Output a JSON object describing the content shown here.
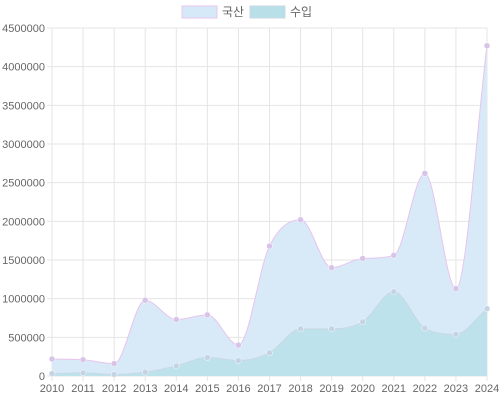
{
  "chart_data": {
    "type": "area",
    "title": "",
    "xlabel": "",
    "ylabel": "",
    "categories": [
      "2010",
      "2011",
      "2012",
      "2013",
      "2014",
      "2015",
      "2016",
      "2017",
      "2018",
      "2019",
      "2020",
      "2021",
      "2022",
      "2023",
      "2024"
    ],
    "ylim": [
      0,
      4500000
    ],
    "yticks": [
      0,
      500000,
      1000000,
      1500000,
      2000000,
      2500000,
      3000000,
      3500000,
      4000000,
      4500000
    ],
    "ytick_labels": [
      "0",
      "500000",
      "1000000",
      "1500000",
      "2000000",
      "2500000",
      "3000000",
      "3500000",
      "4000000",
      "4500000"
    ],
    "grid": true,
    "legend_position": "top-center",
    "series": [
      {
        "name": "국산",
        "values": [
          220000,
          210000,
          160000,
          980000,
          730000,
          790000,
          400000,
          1680000,
          2020000,
          1400000,
          1520000,
          1560000,
          2620000,
          1130000,
          4270000
        ],
        "fill": "#d6e9f8",
        "stroke": "#e8c4ec",
        "point": "#d8c4e8"
      },
      {
        "name": "수입",
        "values": [
          30000,
          40000,
          20000,
          50000,
          130000,
          240000,
          200000,
          300000,
          610000,
          610000,
          700000,
          1090000,
          620000,
          540000,
          870000
        ],
        "fill": "#b9e0e9",
        "stroke": "#c8d8e2",
        "point": "#c4d4e2"
      }
    ]
  }
}
